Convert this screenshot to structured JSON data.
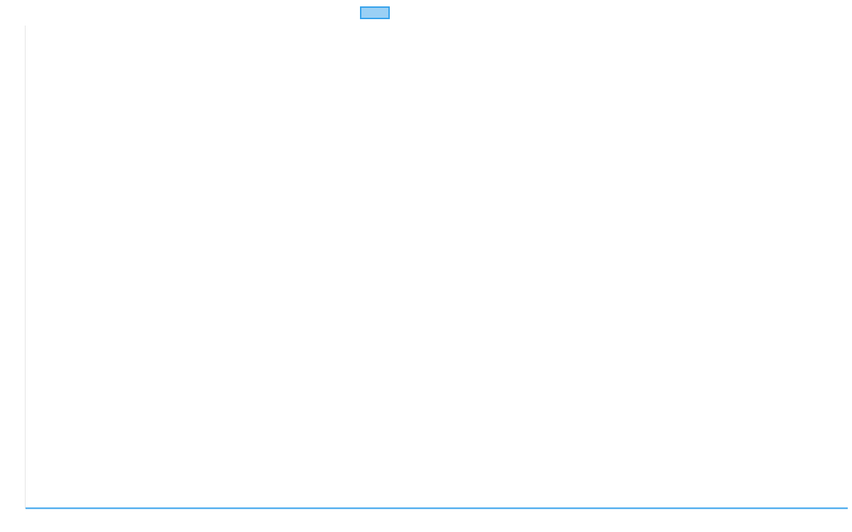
{
  "chart_data": {
    "type": "line",
    "categories": [],
    "series": [
      {
        "values": [],
        "color": "#36a2eb",
        "fill": "#9ad0f5"
      }
    ],
    "title": "",
    "xlabel": "",
    "ylabel": "",
    "legend": "top",
    "grid": false
  }
}
